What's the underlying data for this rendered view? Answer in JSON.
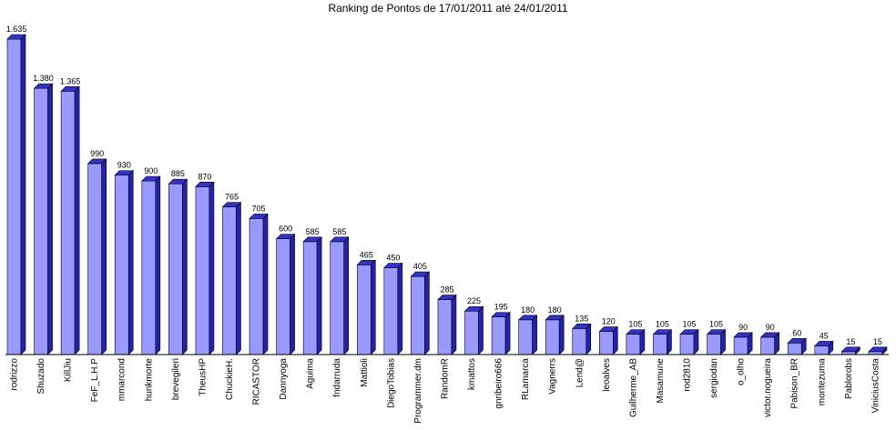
{
  "chart_data": {
    "type": "bar",
    "title": "Ranking de Pontos de 17/01/2011 até 24/01/2011",
    "xlabel": "",
    "ylabel": "",
    "ylim": [
      0,
      1635
    ],
    "grid": false,
    "legend": "none",
    "bar_color": "#9999ff",
    "bar_top_color": "#3333cc",
    "bar_side_color": "#2222aa",
    "categories": [
      "rodrizzo",
      "Shuzado",
      "KillJiu",
      "FeF_L.H.P",
      "mmarcond",
      "hunkmorte",
      "brevegileri",
      "TheusHP",
      "ChuckieH.",
      "RICASTOR",
      "Dannyoga",
      "Aguima",
      "fndarruda",
      "Mattioli",
      "DiegoTobias",
      "Programmer.dm",
      "RandomR",
      "kmattos",
      "gnribeiro666",
      "RLamarca",
      "Vagnerrs",
      "Lend@",
      "leoalves",
      "Guilherme_AB",
      "Masamune",
      "rod2810",
      "sergiodan",
      "o_olho",
      "victor.nogueira",
      "Pabison_BR",
      "montezuma",
      "Pablorobs",
      "ViniciusCosta"
    ],
    "values": [
      1635,
      1380,
      1365,
      990,
      930,
      900,
      885,
      870,
      765,
      705,
      600,
      585,
      585,
      465,
      450,
      405,
      285,
      225,
      195,
      180,
      180,
      135,
      120,
      105,
      105,
      105,
      105,
      90,
      90,
      60,
      45,
      15,
      15
    ],
    "value_labels": [
      "1.635",
      "1.380",
      "1.365",
      "990",
      "930",
      "900",
      "885",
      "870",
      "765",
      "705",
      "600",
      "585",
      "585",
      "465",
      "450",
      "405",
      "285",
      "225",
      "195",
      "180",
      "180",
      "135",
      "120",
      "105",
      "105",
      "105",
      "105",
      "90",
      "90",
      "60",
      "45",
      "15",
      "15"
    ]
  }
}
